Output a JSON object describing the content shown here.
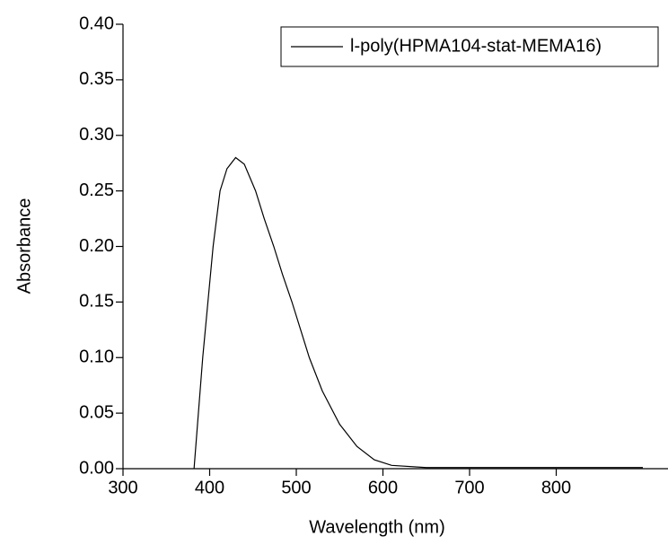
{
  "chart_data": {
    "type": "line",
    "x_label": "Wavelength (nm)",
    "y_label": "Absorbance",
    "xlim": [
      300,
      929
    ],
    "ylim": [
      0,
      0.4
    ],
    "xticks": [
      300,
      400,
      500,
      600,
      700,
      800
    ],
    "yticks": [
      {
        "value": 0,
        "label": "0.00"
      },
      {
        "value": 0.05,
        "label": "0.05"
      },
      {
        "value": 0.1,
        "label": "0.10"
      },
      {
        "value": 0.15,
        "label": "0.15"
      },
      {
        "value": 0.2,
        "label": "0.20"
      },
      {
        "value": 0.25,
        "label": "0.25"
      },
      {
        "value": 0.3,
        "label": "0.30"
      },
      {
        "value": 0.35,
        "label": "0.35"
      },
      {
        "value": 0.4,
        "label": "0.40"
      }
    ],
    "legend": "top-right",
    "x": [
      382,
      387,
      392,
      398,
      404,
      412,
      420,
      430,
      440,
      453,
      463,
      474,
      484,
      495,
      505,
      515,
      530,
      550,
      570,
      590,
      610,
      650,
      700,
      800,
      900
    ],
    "series": [
      {
        "name": "l-poly(HPMA104-stat-MEMA16)",
        "color": "#000000",
        "values": [
          0,
          0.05,
          0.1,
          0.15,
          0.2,
          0.25,
          0.27,
          0.28,
          0.274,
          0.25,
          0.225,
          0.2,
          0.175,
          0.15,
          0.125,
          0.1,
          0.07,
          0.04,
          0.02,
          0.008,
          0.003,
          0.001,
          0.001,
          0.001,
          0.001
        ]
      }
    ]
  }
}
